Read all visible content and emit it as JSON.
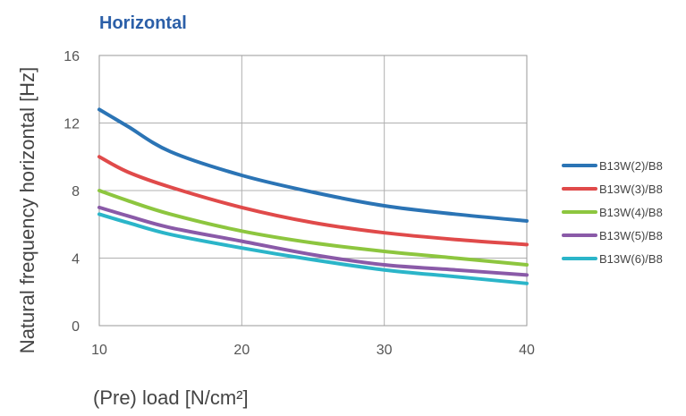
{
  "chart_data": {
    "type": "line",
    "title": "Horizontal",
    "xlabel": "(Pre) load [N/cm²]",
    "ylabel": "Natural frequency horizontal [Hz]",
    "xlim": [
      10,
      40
    ],
    "ylim": [
      0,
      16
    ],
    "x_ticks": [
      10,
      20,
      30,
      40
    ],
    "y_ticks": [
      0,
      4,
      8,
      12,
      16
    ],
    "grid": true,
    "legend_position": "right",
    "series": [
      {
        "name": "B13W(2)/B8",
        "color": "#2b74b5",
        "x": [
          10,
          12,
          15,
          20,
          25,
          30,
          35,
          40
        ],
        "y": [
          12.8,
          11.8,
          10.3,
          8.9,
          7.9,
          7.1,
          6.6,
          6.2
        ]
      },
      {
        "name": "B13W(3)/B8",
        "color": "#e04a4a",
        "x": [
          10,
          12,
          15,
          20,
          25,
          30,
          35,
          40
        ],
        "y": [
          10.0,
          9.1,
          8.2,
          7.0,
          6.1,
          5.5,
          5.1,
          4.8
        ]
      },
      {
        "name": "B13W(4)/B8",
        "color": "#8dc63f",
        "x": [
          10,
          12,
          15,
          20,
          25,
          30,
          35,
          40
        ],
        "y": [
          8.0,
          7.4,
          6.6,
          5.6,
          4.9,
          4.4,
          4.0,
          3.6
        ]
      },
      {
        "name": "B13W(5)/B8",
        "color": "#8a5aa8",
        "x": [
          10,
          12,
          15,
          20,
          25,
          30,
          35,
          40
        ],
        "y": [
          7.0,
          6.5,
          5.8,
          5.0,
          4.2,
          3.6,
          3.3,
          3.0
        ]
      },
      {
        "name": "B13W(6)/B8",
        "color": "#2bb5c9",
        "x": [
          10,
          12,
          15,
          20,
          25,
          30,
          35,
          40
        ],
        "y": [
          6.6,
          6.1,
          5.4,
          4.6,
          3.9,
          3.3,
          2.9,
          2.5
        ]
      }
    ]
  }
}
